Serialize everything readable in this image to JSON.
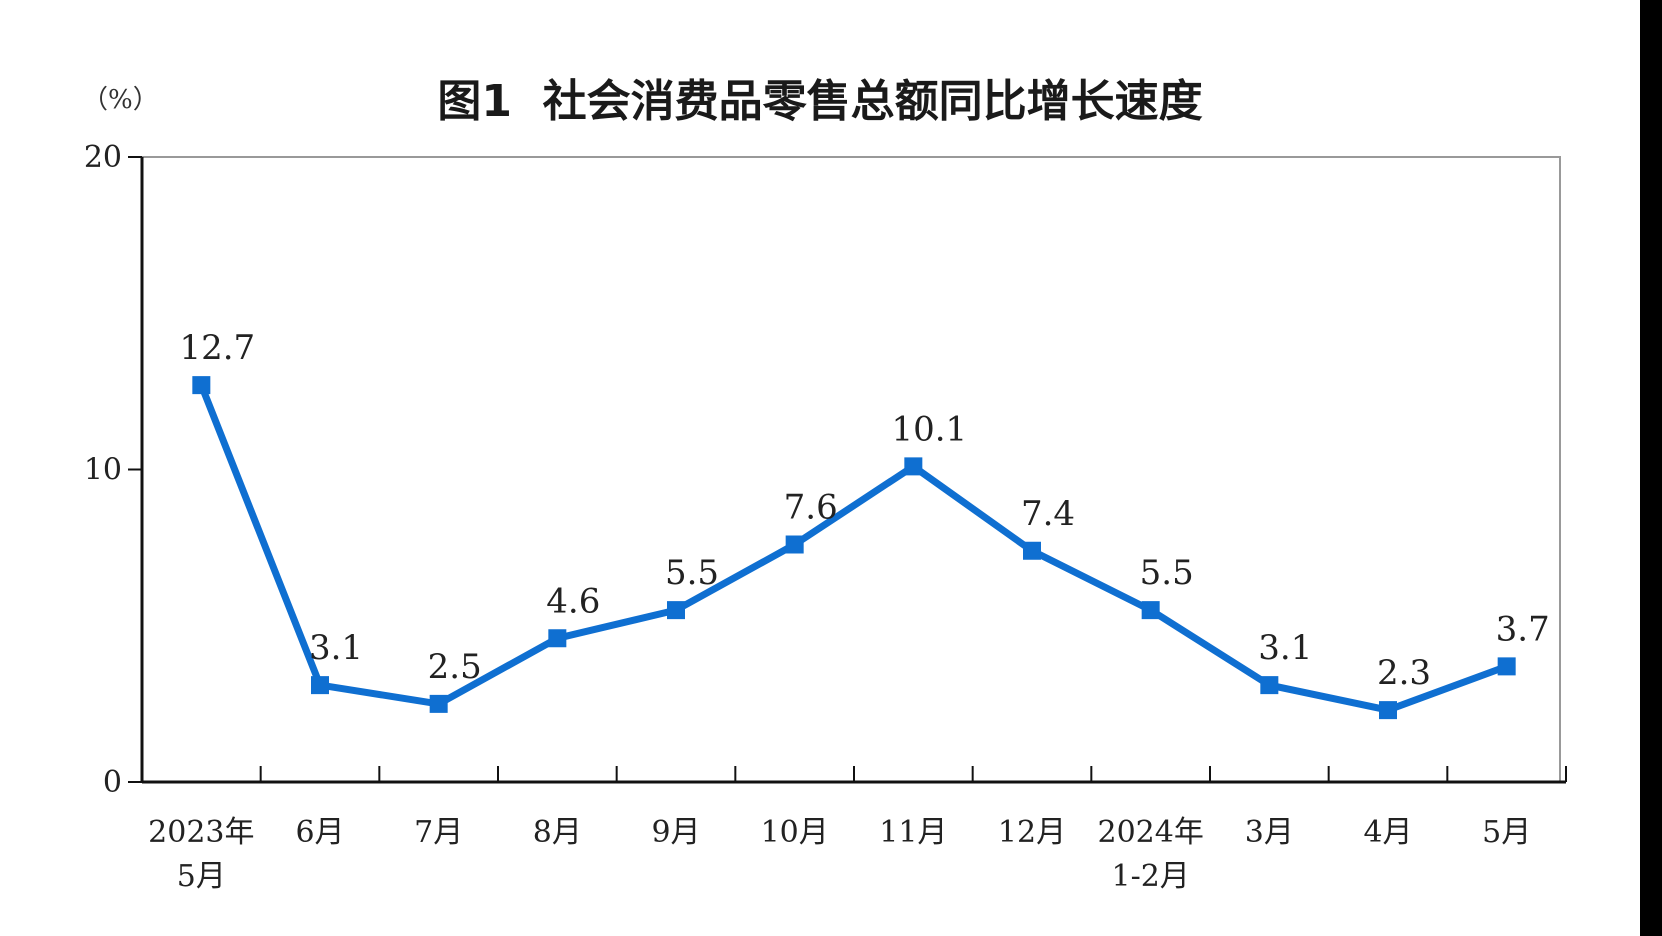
{
  "chart_data": {
    "type": "line",
    "title": "图1  社会消费品零售总额同比增长速度",
    "unit_label": "（%）",
    "categories": [
      [
        "2023年",
        "5月"
      ],
      [
        "6月"
      ],
      [
        "7月"
      ],
      [
        "8月"
      ],
      [
        "9月"
      ],
      [
        "10月"
      ],
      [
        "11月"
      ],
      [
        "12月"
      ],
      [
        "2024年",
        "1-2月"
      ],
      [
        "3月"
      ],
      [
        "4月"
      ],
      [
        "5月"
      ]
    ],
    "series": [
      {
        "values": [
          12.7,
          3.1,
          2.5,
          4.6,
          5.5,
          7.6,
          10.1,
          7.4,
          5.5,
          3.1,
          2.3,
          3.7
        ],
        "color": "#0f6fd1"
      }
    ],
    "data_labels": [
      "12.7",
      "3.1",
      "2.5",
      "4.6",
      "5.5",
      "7.6",
      "10.1",
      "7.4",
      "5.5",
      "3.1",
      "2.3",
      "3.7"
    ],
    "ylim": [
      0,
      20
    ],
    "yticks": [
      0,
      10,
      20
    ],
    "ytick_labels": [
      "0",
      "10",
      "20"
    ],
    "grid": false,
    "marker": "square"
  }
}
